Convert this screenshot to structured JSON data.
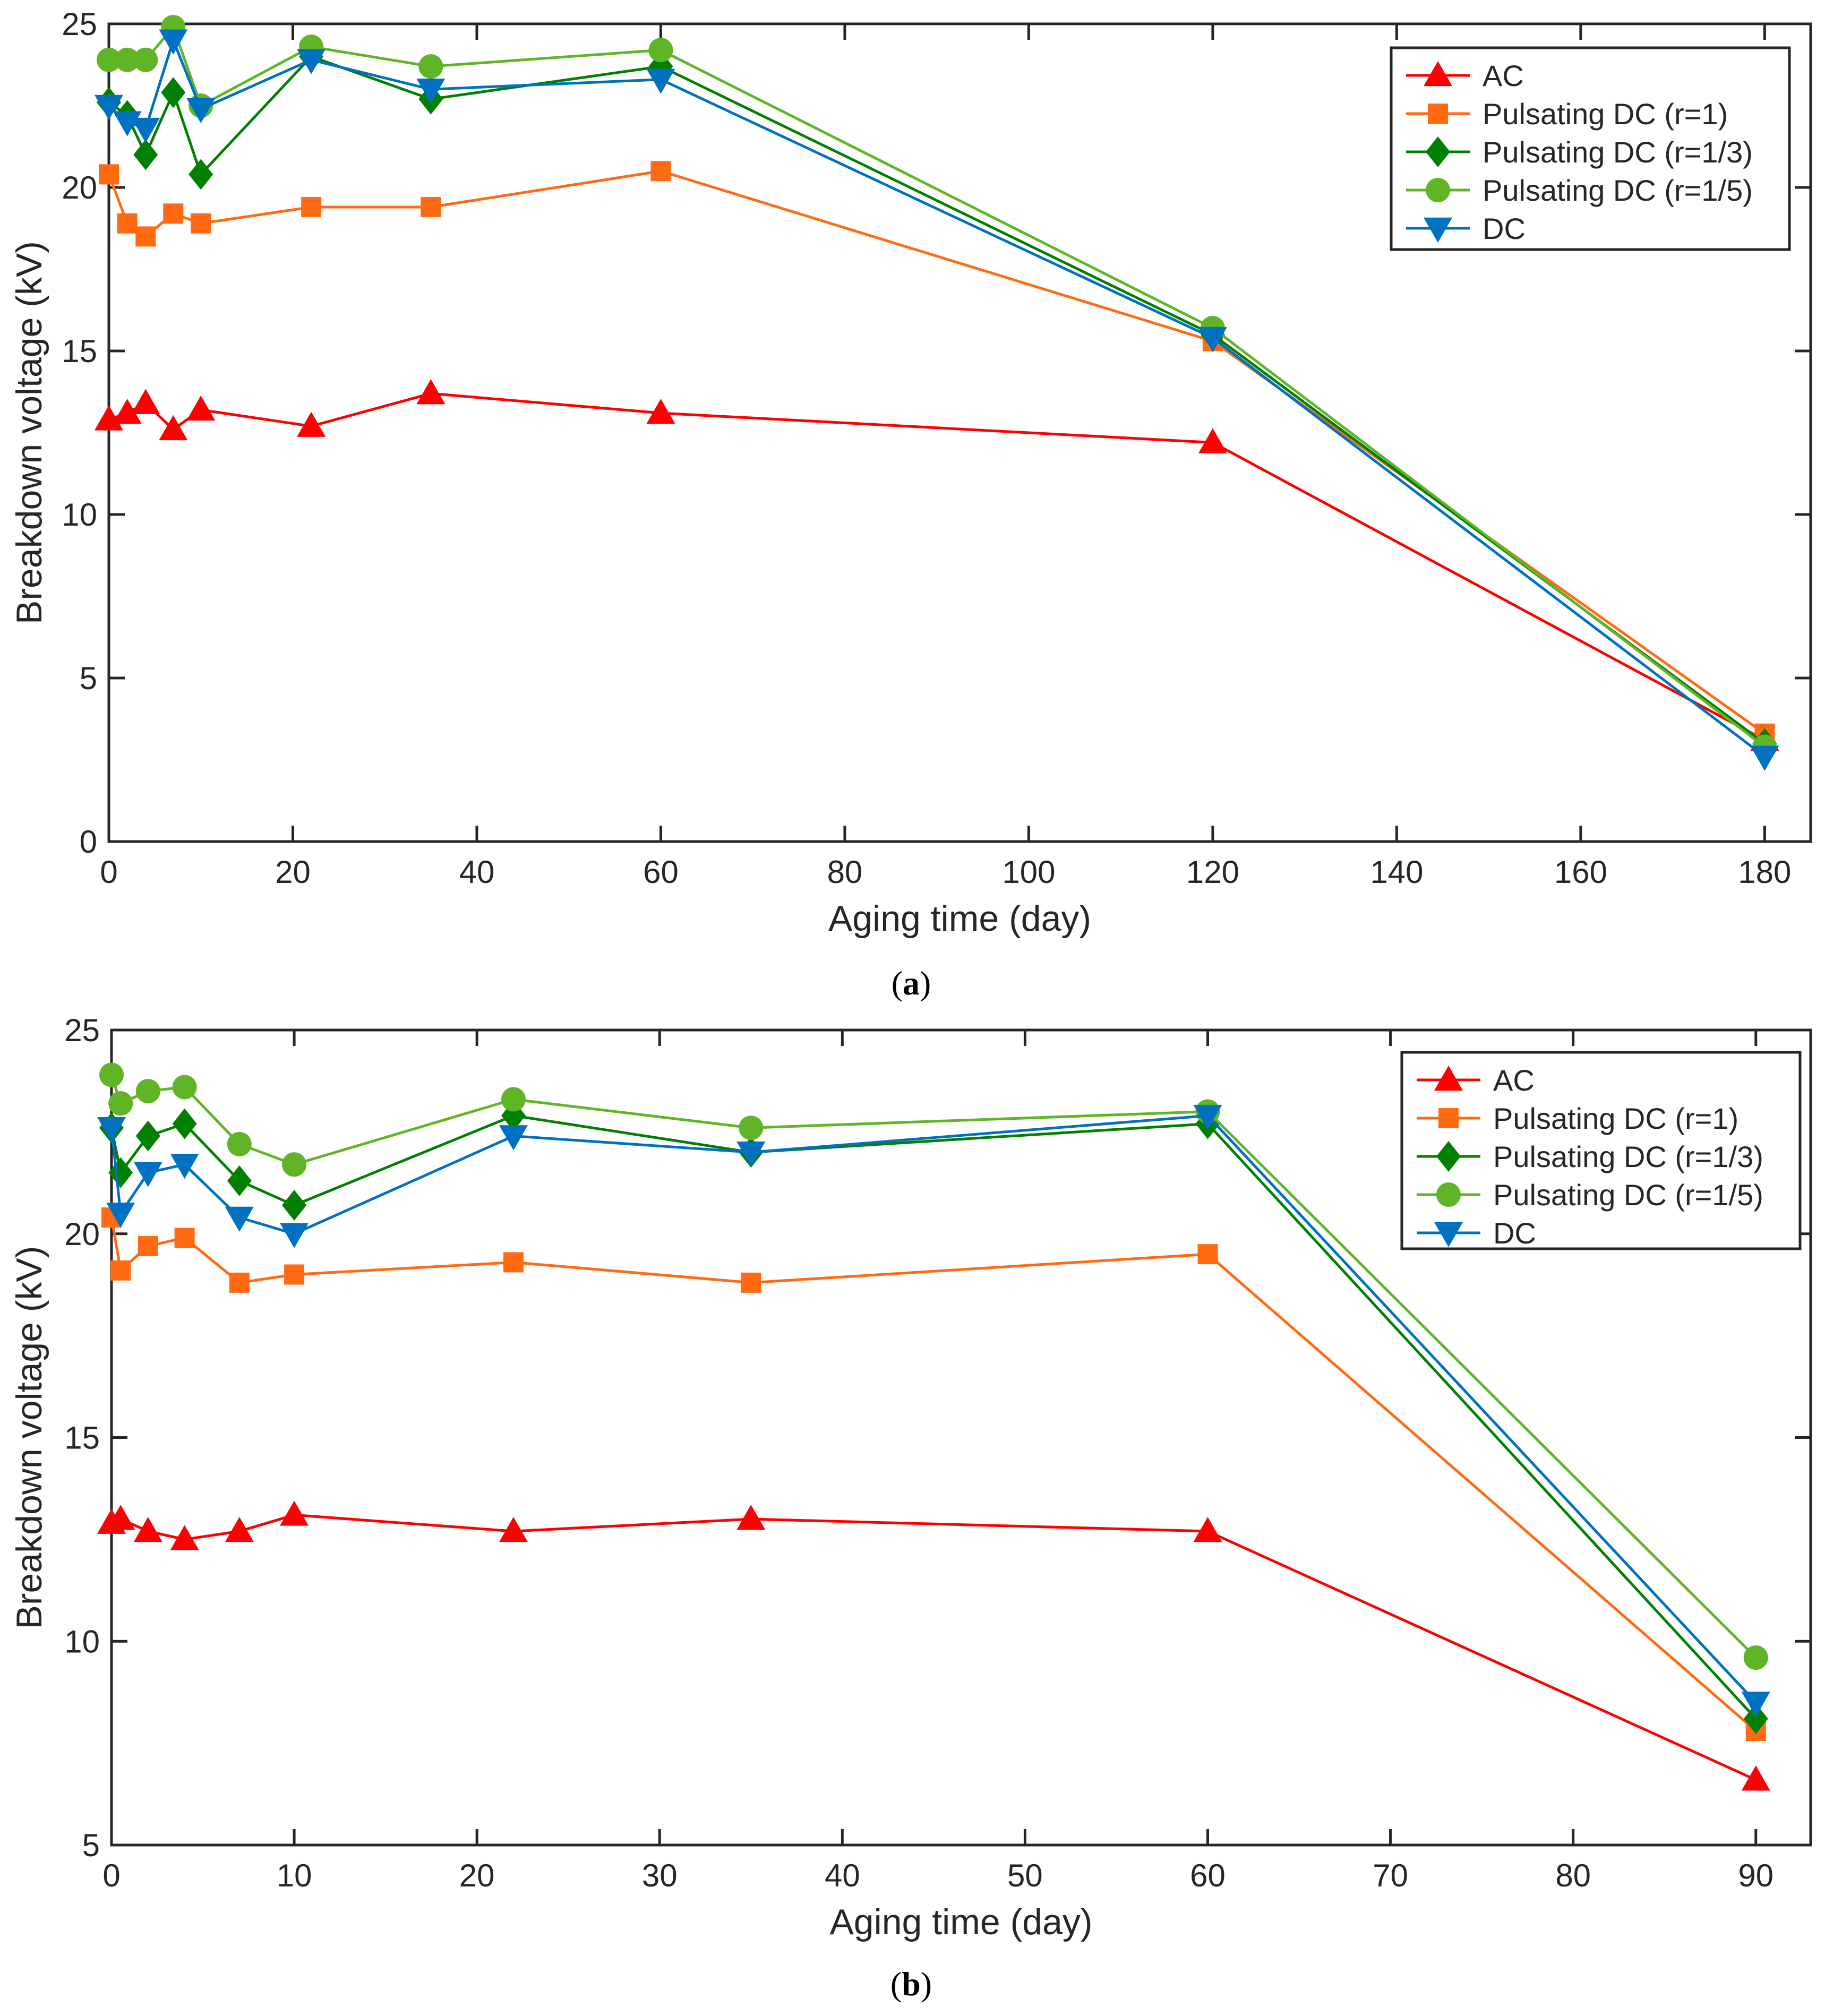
{
  "chart_data": [
    {
      "panel": "a",
      "type": "line",
      "caption": "a",
      "xlabel": "Aging time (day)",
      "ylabel": "Breakdown voltage (kV)",
      "xlim": [
        0,
        185
      ],
      "ylim": [
        0,
        25
      ],
      "xticks": [
        0,
        20,
        40,
        60,
        80,
        100,
        120,
        140,
        160,
        180
      ],
      "yticks": [
        0,
        5,
        10,
        15,
        20,
        25
      ],
      "legend_position": "top-right",
      "x": [
        0,
        2,
        4,
        7,
        10,
        22,
        35,
        60,
        120,
        180
      ],
      "series": [
        {
          "name": "AC",
          "color": "#ff0000",
          "marker": "triangle-up",
          "values": [
            12.9,
            13.1,
            13.4,
            12.6,
            13.2,
            12.7,
            13.7,
            13.1,
            12.2,
            3.1
          ]
        },
        {
          "name": "Pulsating DC (r=1)",
          "color": "#ff6a13",
          "marker": "square",
          "values": [
            20.4,
            18.9,
            18.5,
            19.2,
            18.9,
            19.4,
            19.4,
            20.5,
            15.3,
            3.3
          ]
        },
        {
          "name": "Pulsating DC (r=1/3)",
          "color": "#008000",
          "marker": "diamond",
          "values": [
            22.6,
            22.2,
            21.0,
            22.9,
            20.4,
            24.0,
            22.7,
            23.7,
            15.5,
            3.0
          ]
        },
        {
          "name": "Pulsating DC (r=1/5)",
          "color": "#5fb526",
          "marker": "circle",
          "values": [
            23.9,
            23.9,
            23.9,
            24.9,
            22.5,
            24.3,
            23.7,
            24.2,
            15.7,
            2.9
          ]
        },
        {
          "name": "DC",
          "color": "#0070c0",
          "marker": "triangle-down",
          "values": [
            22.5,
            22.0,
            21.8,
            24.5,
            22.4,
            23.9,
            23.0,
            23.3,
            15.4,
            2.6
          ]
        }
      ]
    },
    {
      "panel": "b",
      "type": "line",
      "caption": "b",
      "xlabel": "Aging time (day)",
      "ylabel": "Breakdown voltage (kV)",
      "xlim": [
        0,
        93
      ],
      "ylim": [
        5,
        25
      ],
      "xticks": [
        0,
        10,
        20,
        30,
        40,
        50,
        60,
        70,
        80,
        90
      ],
      "yticks": [
        5,
        10,
        15,
        20,
        25
      ],
      "legend_position": "top-right",
      "x": [
        0,
        0.5,
        2,
        4,
        7,
        10,
        22,
        35,
        60,
        90
      ],
      "series": [
        {
          "name": "AC",
          "color": "#ff0000",
          "marker": "triangle-up",
          "values": [
            12.9,
            13.0,
            12.7,
            12.5,
            12.7,
            13.1,
            12.7,
            13.0,
            12.7,
            6.6
          ]
        },
        {
          "name": "Pulsating DC (r=1)",
          "color": "#ff6a13",
          "marker": "square",
          "values": [
            20.4,
            19.1,
            19.7,
            19.9,
            18.8,
            19.0,
            19.3,
            18.8,
            19.5,
            7.8
          ]
        },
        {
          "name": "Pulsating DC (r=1/3)",
          "color": "#008000",
          "marker": "diamond",
          "values": [
            22.6,
            21.5,
            22.4,
            22.7,
            21.3,
            20.7,
            22.9,
            22.0,
            22.7,
            8.1
          ]
        },
        {
          "name": "Pulsating DC (r=1/5)",
          "color": "#5fb526",
          "marker": "circle",
          "values": [
            23.9,
            23.2,
            23.5,
            23.6,
            22.2,
            21.7,
            23.3,
            22.6,
            23.0,
            9.6
          ]
        },
        {
          "name": "DC",
          "color": "#0070c0",
          "marker": "triangle-down",
          "values": [
            22.6,
            20.5,
            21.5,
            21.7,
            20.4,
            20.0,
            22.4,
            22.0,
            22.9,
            8.5
          ]
        }
      ]
    }
  ]
}
